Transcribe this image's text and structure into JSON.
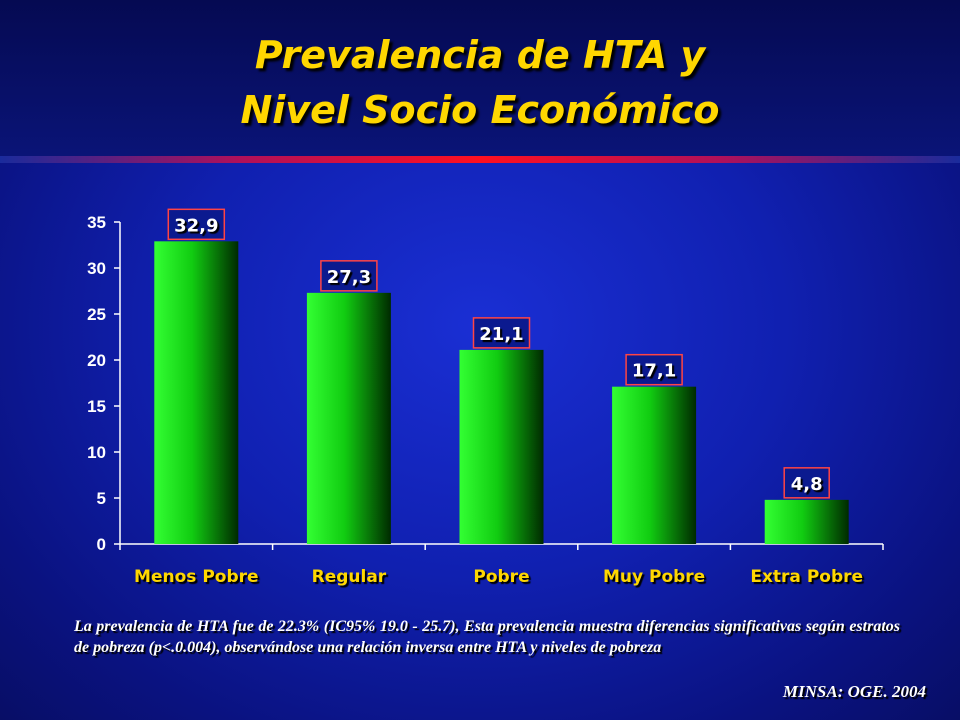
{
  "slide": {
    "title_line1": "Prevalencia de HTA y",
    "title_line2": "Nivel Socio Económico",
    "note": "La prevalencia de HTA fue de 22.3% (IC95% 19.0 - 25.7), Esta prevalencia muestra diferencias significativas según estratos de pobreza (p<.0.004), observándose una relación inversa entre HTA y niveles de pobreza",
    "source": "MINSA: OGE. 2004"
  },
  "colors": {
    "title": "#ffd700",
    "bar_light": "#33ff33",
    "bar_dark": "#003300",
    "label_box_bg": "#0b1a8f",
    "label_box_border": "#ff4444",
    "category_text": "#ffd700"
  },
  "chart_data": {
    "type": "bar",
    "categories": [
      "Menos Pobre",
      "Regular",
      "Pobre",
      "Muy Pobre",
      "Extra Pobre"
    ],
    "values": [
      32.9,
      27.3,
      21.1,
      17.1,
      4.8
    ],
    "data_labels": [
      "32,9",
      "27,3",
      "21,1",
      "17,1",
      "4,8"
    ],
    "yticks": [
      "0",
      "5",
      "10",
      "15",
      "20",
      "25",
      "30",
      "35"
    ],
    "ylim": [
      0,
      35
    ],
    "grid": false
  }
}
